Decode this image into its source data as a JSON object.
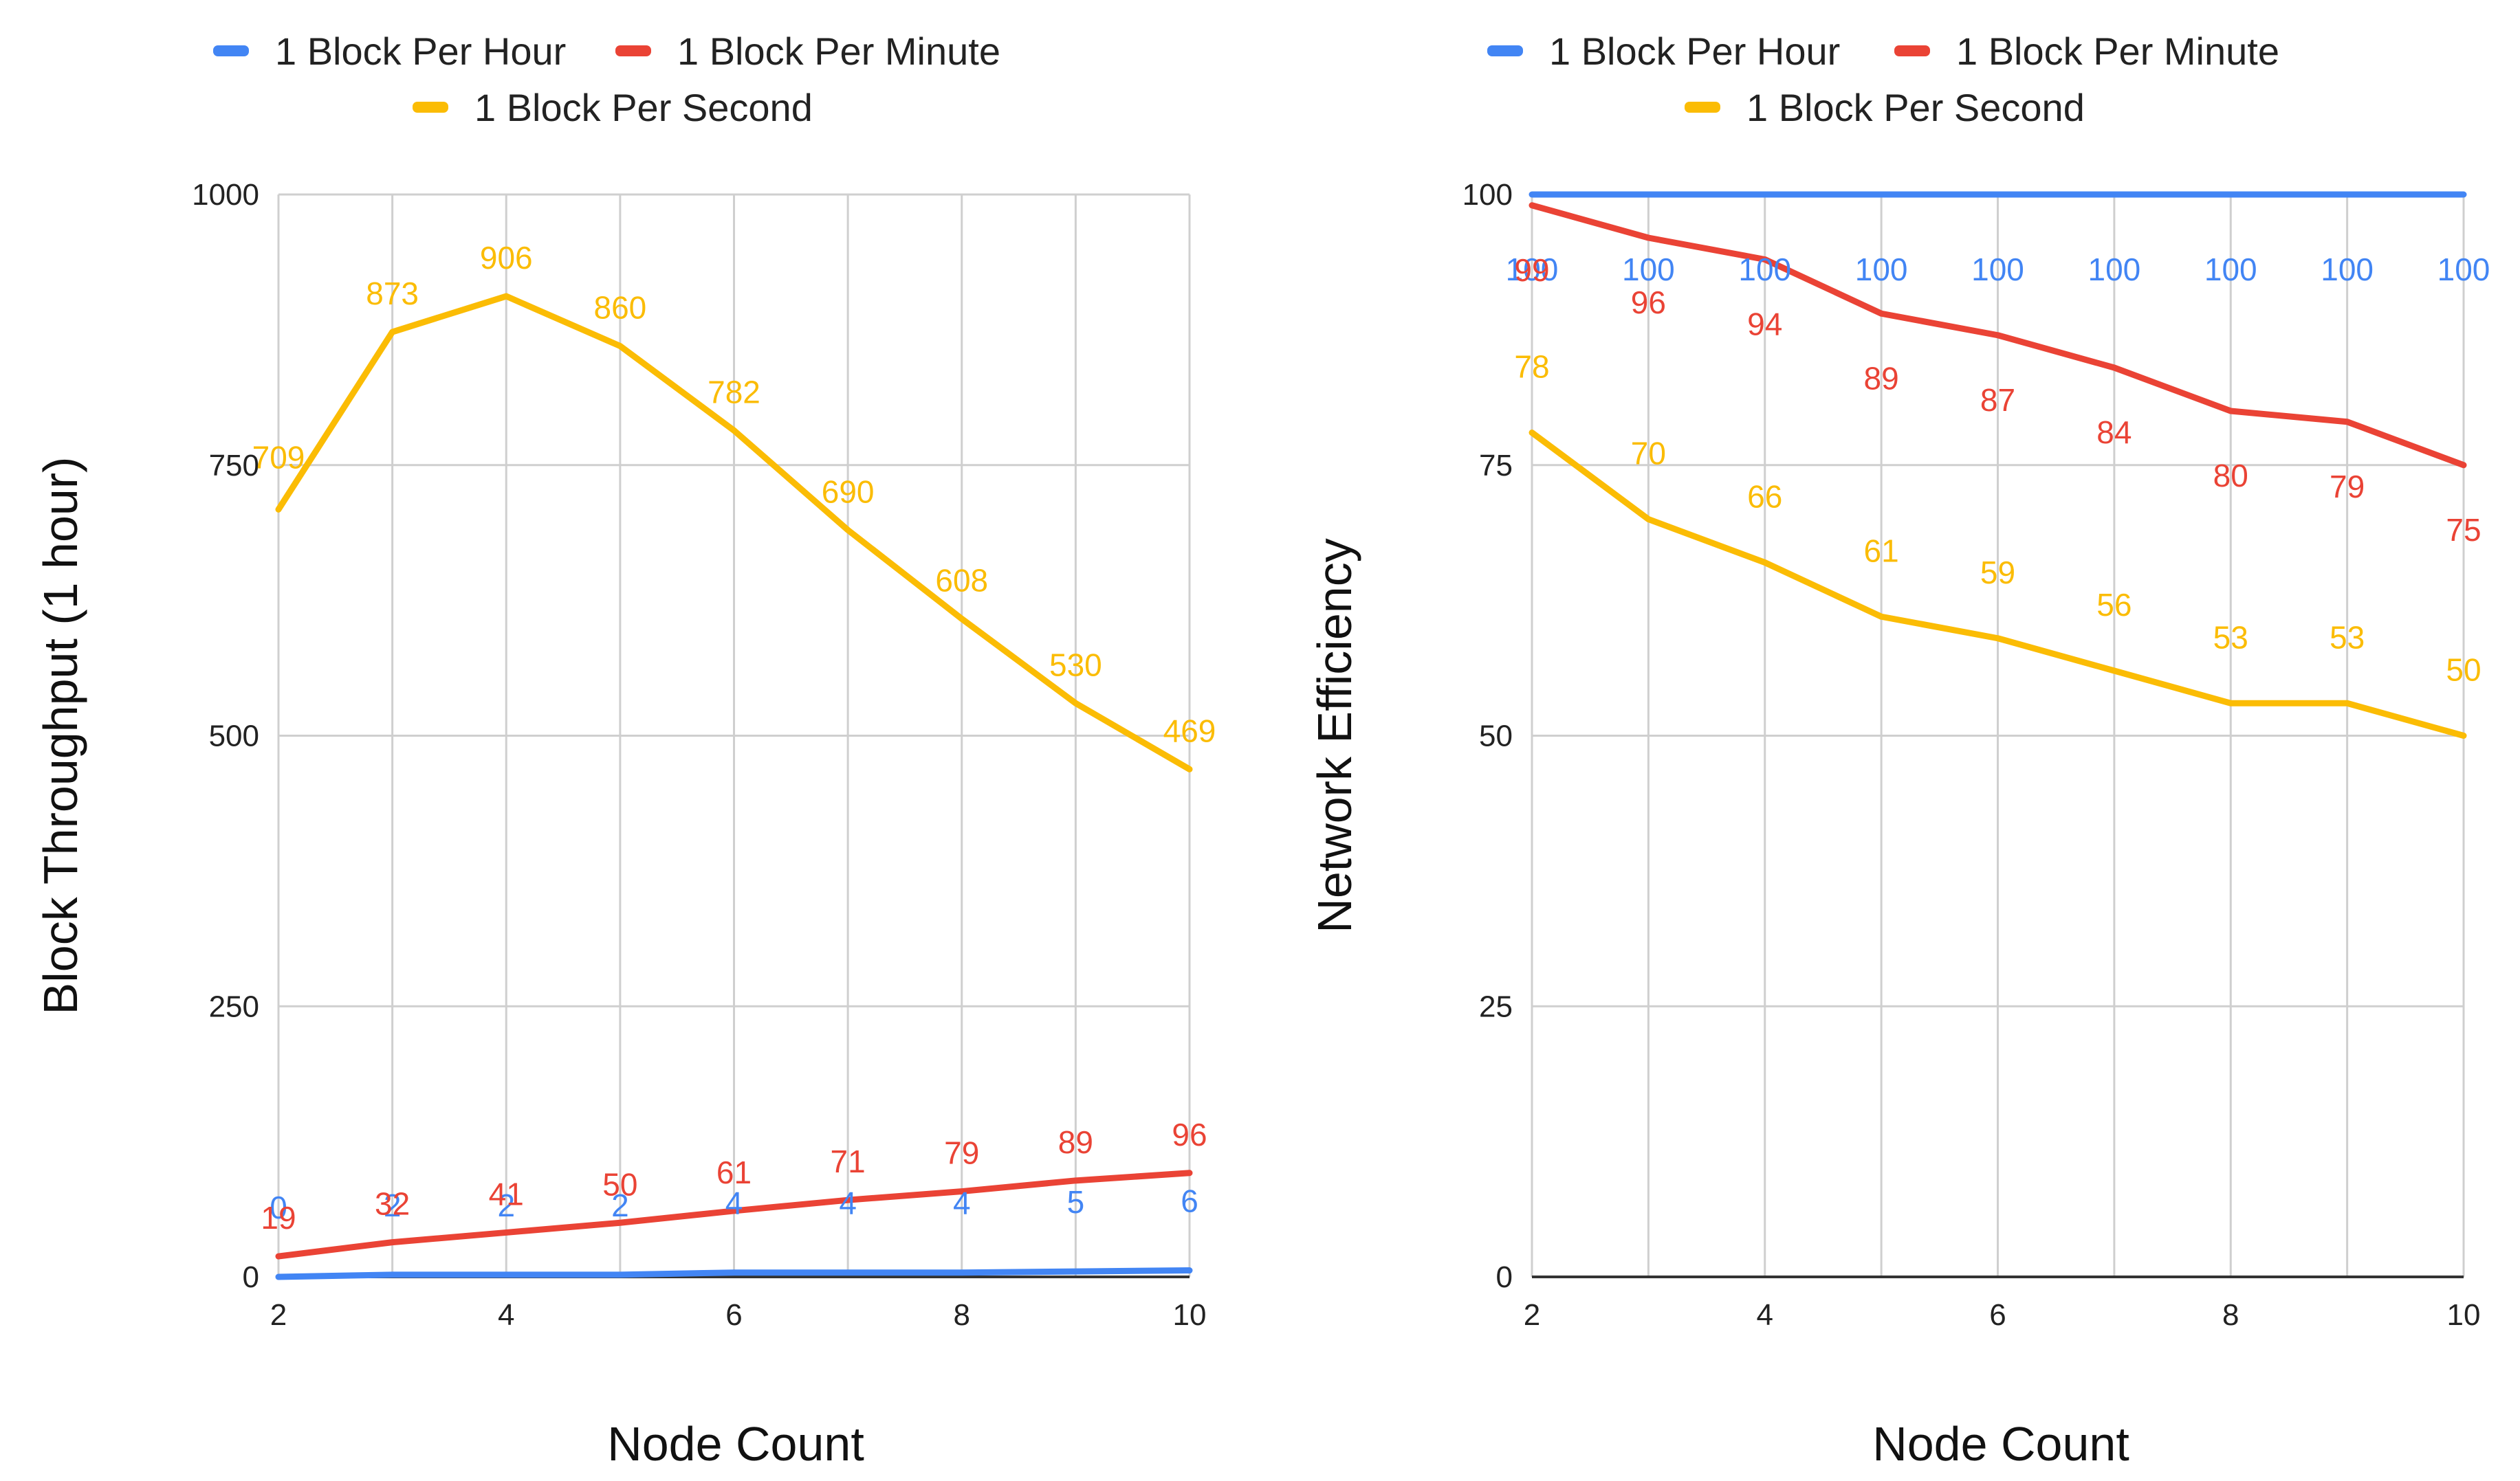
{
  "chart_data": [
    {
      "type": "line",
      "xlabel": "Node Count",
      "ylabel": "Block Throughput (1 hour)",
      "x": [
        2,
        3,
        4,
        5,
        6,
        7,
        8,
        9,
        10
      ],
      "xlim": [
        2,
        10
      ],
      "ylim": [
        0,
        1000
      ],
      "x_ticks": [
        2,
        4,
        6,
        8,
        10
      ],
      "y_ticks": [
        0,
        250,
        500,
        750,
        1000
      ],
      "grid": true,
      "legend_position": "top",
      "series": [
        {
          "name": "1 Block Per Hour",
          "color": "#4285F4",
          "values": [
            0,
            2,
            2,
            2,
            4,
            4,
            4,
            5,
            6
          ]
        },
        {
          "name": "1 Block Per Minute",
          "color": "#EA4335",
          "values": [
            19,
            32,
            41,
            50,
            61,
            71,
            79,
            89,
            96
          ]
        },
        {
          "name": "1 Block Per Second",
          "color": "#FBBC04",
          "values": [
            709,
            873,
            906,
            860,
            782,
            690,
            608,
            530,
            469
          ]
        }
      ]
    },
    {
      "type": "line",
      "xlabel": "Node Count",
      "ylabel": "Network Efficiency",
      "x": [
        2,
        3,
        4,
        5,
        6,
        7,
        8,
        9,
        10
      ],
      "xlim": [
        2,
        10
      ],
      "ylim": [
        0,
        100
      ],
      "x_ticks": [
        2,
        4,
        6,
        8,
        10
      ],
      "y_ticks": [
        0,
        25,
        50,
        75,
        100
      ],
      "grid": true,
      "legend_position": "top",
      "series": [
        {
          "name": "1 Block Per Hour",
          "color": "#4285F4",
          "values": [
            100,
            100,
            100,
            100,
            100,
            100,
            100,
            100,
            100
          ]
        },
        {
          "name": "1 Block Per Minute",
          "color": "#EA4335",
          "values": [
            99,
            96,
            94,
            89,
            87,
            84,
            80,
            79,
            75
          ]
        },
        {
          "name": "1 Block Per Second",
          "color": "#FBBC04",
          "values": [
            78,
            70,
            66,
            61,
            59,
            56,
            53,
            53,
            50
          ]
        }
      ]
    }
  ]
}
